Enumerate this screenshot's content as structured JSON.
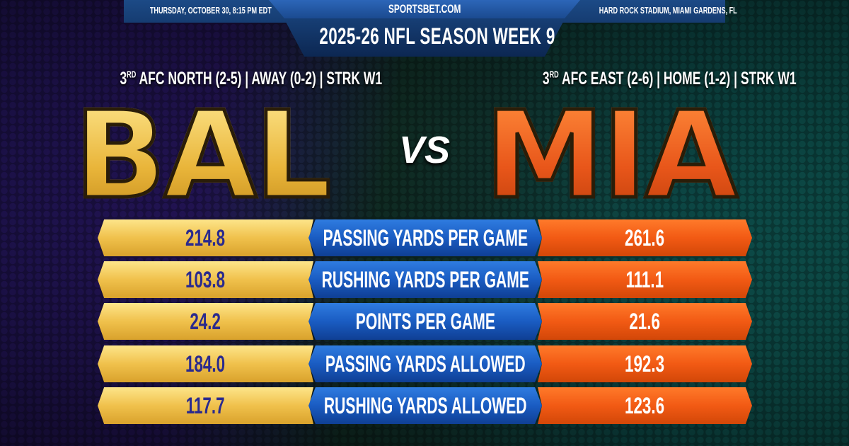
{
  "header": {
    "site": "SPORTSBET.COM",
    "date": "THURSDAY, OCTOBER 30, 8:15 PM EDT",
    "venue": "HARD ROCK STADIUM, MIAMI GARDENS, FL",
    "title": "2025-26 NFL SEASON WEEK 9"
  },
  "away": {
    "abbr": "BAL",
    "rank": "3",
    "rank_suffix": "RD",
    "record": "AFC NORTH (2-5) | AWAY (0-2) | STRK W1",
    "color": "#f0c14c"
  },
  "home": {
    "abbr": "MIA",
    "rank": "3",
    "rank_suffix": "RD",
    "record": "AFC EAST (2-6) | HOME (1-2) | STRK W1",
    "color": "#f25a14"
  },
  "vs": "VS",
  "stats": [
    {
      "label": "PASSING YARDS PER GAME",
      "away": "214.8",
      "home": "261.6"
    },
    {
      "label": "RUSHING YARDS PER GAME",
      "away": "103.8",
      "home": "111.1"
    },
    {
      "label": "POINTS PER GAME",
      "away": "24.2",
      "home": "21.6"
    },
    {
      "label": "PASSING YARDS ALLOWED",
      "away": "184.0",
      "home": "192.3"
    },
    {
      "label": "RUSHING YARDS ALLOWED",
      "away": "117.7",
      "home": "123.6"
    }
  ]
}
